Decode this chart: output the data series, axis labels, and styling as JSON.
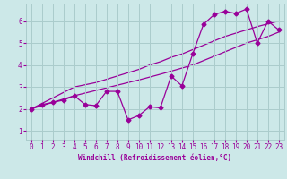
{
  "x_values": [
    0,
    1,
    2,
    3,
    4,
    5,
    6,
    7,
    8,
    9,
    10,
    11,
    12,
    13,
    14,
    15,
    16,
    17,
    18,
    19,
    20,
    21,
    22,
    23
  ],
  "line_zigzag": [
    2.0,
    2.2,
    2.3,
    2.4,
    2.6,
    2.2,
    2.15,
    2.8,
    2.8,
    1.5,
    1.7,
    2.1,
    2.05,
    3.5,
    3.05,
    4.5,
    5.85,
    6.3,
    6.45,
    6.35,
    6.55,
    5.0,
    6.0,
    5.6
  ],
  "line_upper": [
    2.0,
    2.25,
    2.5,
    2.75,
    3.0,
    3.1,
    3.2,
    3.35,
    3.5,
    3.65,
    3.8,
    4.0,
    4.15,
    4.35,
    4.5,
    4.7,
    4.9,
    5.1,
    5.3,
    5.45,
    5.6,
    5.75,
    5.88,
    6.0
  ],
  "line_lower": [
    2.0,
    2.15,
    2.3,
    2.45,
    2.6,
    2.72,
    2.84,
    2.96,
    3.08,
    3.2,
    3.32,
    3.45,
    3.58,
    3.72,
    3.86,
    4.0,
    4.2,
    4.4,
    4.6,
    4.8,
    5.0,
    5.15,
    5.3,
    5.5
  ],
  "color": "#990099",
  "bg_color": "#cce8e8",
  "grid_color": "#aacccc",
  "xlabel": "Windchill (Refroidissement éolien,°C)",
  "ylim": [
    0.6,
    6.8
  ],
  "xlim": [
    -0.5,
    23.5
  ],
  "yticks": [
    1,
    2,
    3,
    4,
    5,
    6
  ],
  "xticks": [
    0,
    1,
    2,
    3,
    4,
    5,
    6,
    7,
    8,
    9,
    10,
    11,
    12,
    13,
    14,
    15,
    16,
    17,
    18,
    19,
    20,
    21,
    22,
    23
  ]
}
